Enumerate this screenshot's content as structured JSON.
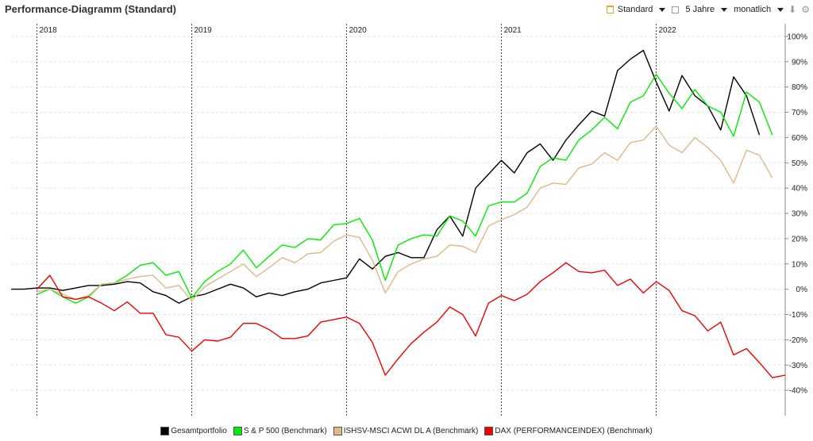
{
  "header": {
    "title": "Performance-Diagramm (Standard)",
    "view_label": "Standard",
    "period_label": "5 Jahre",
    "interval_label": "monatlich",
    "icons": [
      "standard-view-icon",
      "calendar-icon",
      "download-icon",
      "gear-icon"
    ]
  },
  "chart_data": {
    "type": "line",
    "title": "",
    "xlabel": "",
    "ylabel": "",
    "ylim": [
      -50,
      105
    ],
    "y_ticks": [
      -40,
      -30,
      -20,
      -10,
      0,
      10,
      20,
      30,
      40,
      50,
      60,
      70,
      80,
      90,
      100
    ],
    "y_tick_labels": [
      "-40%",
      "-30%",
      "-20%",
      "-10%",
      "0%",
      "10%",
      "20%",
      "30%",
      "40%",
      "50%",
      "60%",
      "70%",
      "80%",
      "90%",
      "100%"
    ],
    "year_markers": [
      {
        "label": "2018",
        "x": 1
      },
      {
        "label": "2019",
        "x": 13
      },
      {
        "label": "2020",
        "x": 25
      },
      {
        "label": "2021",
        "x": 37
      },
      {
        "label": "2022",
        "x": 49
      }
    ],
    "x_range": [
      -1,
      59
    ],
    "grid": true,
    "legend_position": "bottom",
    "series": [
      {
        "name": "Gesamtportfolio",
        "color": "#000000",
        "start_x": -1,
        "values": [
          0,
          0,
          0.5,
          0.5,
          -0.5,
          0.5,
          1.5,
          1.5,
          2,
          3,
          2.5,
          -1,
          -2.5,
          -5.5,
          -3,
          -2,
          0,
          2,
          0.5,
          -3,
          -1.5,
          -2.5,
          -1,
          0,
          2.5,
          3.5,
          4.5,
          12,
          8,
          13,
          14.5,
          12.5,
          12.5,
          23.5,
          29,
          21,
          40,
          45.5,
          51,
          46,
          54,
          57.5,
          51,
          59,
          65,
          70.5,
          68.5,
          86.5,
          91,
          94.5,
          82,
          70.5,
          84.5,
          76.5,
          72.5,
          63,
          84,
          76.5,
          61
        ]
      },
      {
        "name": "S & P 500 (Benchmark)",
        "color": "#00ee00",
        "start_x": 1,
        "values": [
          -2,
          0,
          -3,
          -5.5,
          -3,
          2,
          2.5,
          5.5,
          9.5,
          10.5,
          5.5,
          7,
          -3.5,
          3,
          7,
          10,
          15.5,
          8.5,
          13,
          17.5,
          16.5,
          20,
          19.5,
          25.5,
          26,
          28,
          19.5,
          3.5,
          17.5,
          20,
          21.5,
          21,
          29,
          27,
          21,
          33,
          34.5,
          34.5,
          38,
          48.5,
          52,
          51,
          59,
          63,
          68,
          63.5,
          74,
          76.5,
          85,
          77.5,
          71.5,
          79,
          72.5,
          70,
          60.5,
          78,
          74,
          61
        ]
      },
      {
        "name": "ISHSV-MSCI ACWI DL A (Benchmark)",
        "color": "#deb887",
        "start_x": 1,
        "values": [
          -1,
          0,
          -2,
          -4,
          -2.5,
          2,
          2.5,
          4,
          5,
          5.5,
          0.5,
          1.5,
          -4.5,
          1,
          4,
          7,
          10,
          5,
          8.5,
          12.5,
          10.5,
          14,
          14.5,
          19,
          21.5,
          20.5,
          11.5,
          -1.5,
          7,
          10,
          12,
          13,
          17.5,
          17,
          14.5,
          25,
          27.5,
          29.5,
          32.5,
          40,
          42,
          41.5,
          48,
          49.5,
          54,
          51,
          58,
          59,
          64.5,
          57,
          54,
          60,
          56,
          51,
          42,
          55,
          53,
          44
        ]
      },
      {
        "name": "DAX (PERFORMANCEINDEX) (Benchmark)",
        "color": "#ee0000",
        "start_x": 1,
        "values": [
          0,
          5.5,
          -3,
          -4,
          -3,
          -5.5,
          -8.5,
          -5,
          -9.5,
          -9.5,
          -18,
          -19,
          -24.5,
          -20,
          -20.5,
          -19,
          -13.5,
          -13.5,
          -16,
          -19.5,
          -19.5,
          -18.5,
          -13,
          -12,
          -11,
          -13.5,
          -21,
          -34,
          -27.5,
          -21.5,
          -17,
          -13,
          -7,
          -10,
          -18.5,
          -5.5,
          -2.5,
          -4.5,
          -2,
          3,
          6.5,
          10.5,
          7,
          6.5,
          7.5,
          1.5,
          4,
          -1.5,
          3,
          -0.5,
          -8.5,
          -10.5,
          -16.5,
          -13,
          -26,
          -23.5,
          -29,
          -35,
          -34
        ]
      }
    ]
  }
}
